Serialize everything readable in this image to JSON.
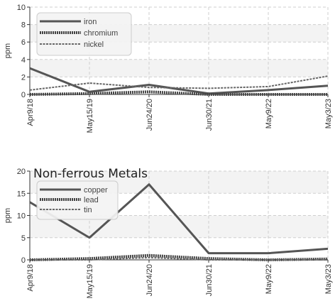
{
  "chart_data": [
    {
      "type": "line",
      "title": "",
      "ylabel": "ppm",
      "ylim": [
        0,
        10
      ],
      "yticks": [
        0,
        2,
        4,
        6,
        8,
        10
      ],
      "categories": [
        "Apr9/18",
        "May15/19",
        "Jun24/20",
        "Jun30/21",
        "May9/22",
        "May3/23"
      ],
      "legend_position": "top-left",
      "series": [
        {
          "name": "iron",
          "style": "solid",
          "color": "#555555",
          "values": [
            3.0,
            0.3,
            1.1,
            0.1,
            0.5,
            1.0
          ]
        },
        {
          "name": "chromium",
          "style": "dotted",
          "color": "#444444",
          "values": [
            0.0,
            0.1,
            0.3,
            0.0,
            0.0,
            0.0
          ]
        },
        {
          "name": "nickel",
          "style": "dashed",
          "color": "#666666",
          "values": [
            0.5,
            1.3,
            0.8,
            0.7,
            0.9,
            2.1
          ]
        }
      ]
    },
    {
      "type": "line",
      "title": "Non-ferrous Metals",
      "ylabel": "ppm",
      "ylim": [
        0,
        20
      ],
      "yticks": [
        0,
        5,
        10,
        15,
        20
      ],
      "categories": [
        "Apr9/18",
        "May15/19",
        "Jun24/20",
        "Jun30/21",
        "May9/22",
        "May3/23"
      ],
      "legend_position": "top-left",
      "series": [
        {
          "name": "copper",
          "style": "solid",
          "color": "#555555",
          "values": [
            13.0,
            5.0,
            17.0,
            1.5,
            1.5,
            2.5
          ]
        },
        {
          "name": "lead",
          "style": "dotted",
          "color": "#444444",
          "values": [
            0.0,
            0.3,
            1.0,
            0.3,
            0.0,
            0.2
          ]
        },
        {
          "name": "tin",
          "style": "dashed",
          "color": "#666666",
          "values": [
            0.0,
            0.0,
            0.5,
            0.0,
            0.0,
            0.0
          ]
        }
      ]
    }
  ]
}
